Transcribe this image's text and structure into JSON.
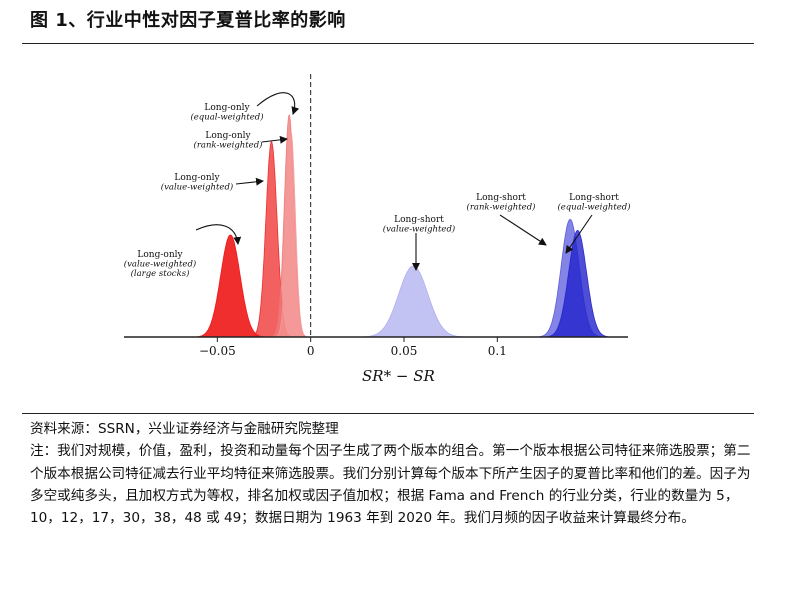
{
  "figure": {
    "title": "图 1、行业中性对因子夏普比率的影响"
  },
  "chart_data": {
    "type": "area",
    "xlabel": "SR* − SR",
    "ylabel": "",
    "xlim": [
      -0.1,
      0.17
    ],
    "x_ticks": [
      -0.05,
      0,
      0.05,
      0.1
    ],
    "x_tick_labels": [
      "−0.05",
      "0",
      "0.05",
      "0.1"
    ],
    "reference_line": {
      "x": 0,
      "style": "dashed"
    },
    "grid": false,
    "series": [
      {
        "lines": [
          "Long-only",
          "(value-weighted)",
          "(large stocks)"
        ],
        "color": "#ee1111",
        "opacity": 0.88,
        "mean": -0.043,
        "sd": 0.0052,
        "peak": 0.46
      },
      {
        "lines": [
          "Long-only",
          "(value-weighted)"
        ],
        "color": "#ee2222",
        "opacity": 0.72,
        "mean": -0.021,
        "sd": 0.003,
        "peak": 0.88
      },
      {
        "lines": [
          "Long-only",
          "(rank-weighted)"
        ],
        "color": "#f07878",
        "opacity": 0.78,
        "mean": -0.0115,
        "sd": 0.0026,
        "peak": 1.0
      },
      {
        "lines": [
          "Long-only",
          "(equal-weighted)"
        ],
        "color": "#f49a9a",
        "opacity": 0.62,
        "mean": -0.0105,
        "sd": 0.0023,
        "peak": 0.92
      },
      {
        "lines": [
          "Long-short",
          "(value-weighted)"
        ],
        "color": "#aaaaee",
        "opacity": 0.7,
        "mean": 0.055,
        "sd": 0.0078,
        "peak": 0.32
      },
      {
        "lines": [
          "Long-short",
          "(rank-weighted)"
        ],
        "color": "#5555dd",
        "opacity": 0.72,
        "mean": 0.139,
        "sd": 0.0048,
        "peak": 0.53
      },
      {
        "lines": [
          "Long-short",
          "(equal-weighted)"
        ],
        "color": "#2222cc",
        "opacity": 0.8,
        "mean": 0.143,
        "sd": 0.0048,
        "peak": 0.48
      }
    ]
  },
  "notes": {
    "source": "资料来源：SSRN，兴业证券经济与金融研究院整理",
    "note": "注：我们对规模，价值，盈利，投资和动量每个因子生成了两个版本的组合。第一个版本根据公司特征来筛选股票；第二个版本根据公司特征减去行业平均特征来筛选股票。我们分别计算每个版本下所产生因子的夏普比率和他们的差。因子为多空或纯多头，且加权方式为等权，排名加权或因子值加权；根据 Fama and French 的行业分类，行业的数量为 5，10，12，17，30，38，48 或 49；数据日期为 1963 年到 2020 年。我们月频的因子收益来计算最终分布。"
  }
}
